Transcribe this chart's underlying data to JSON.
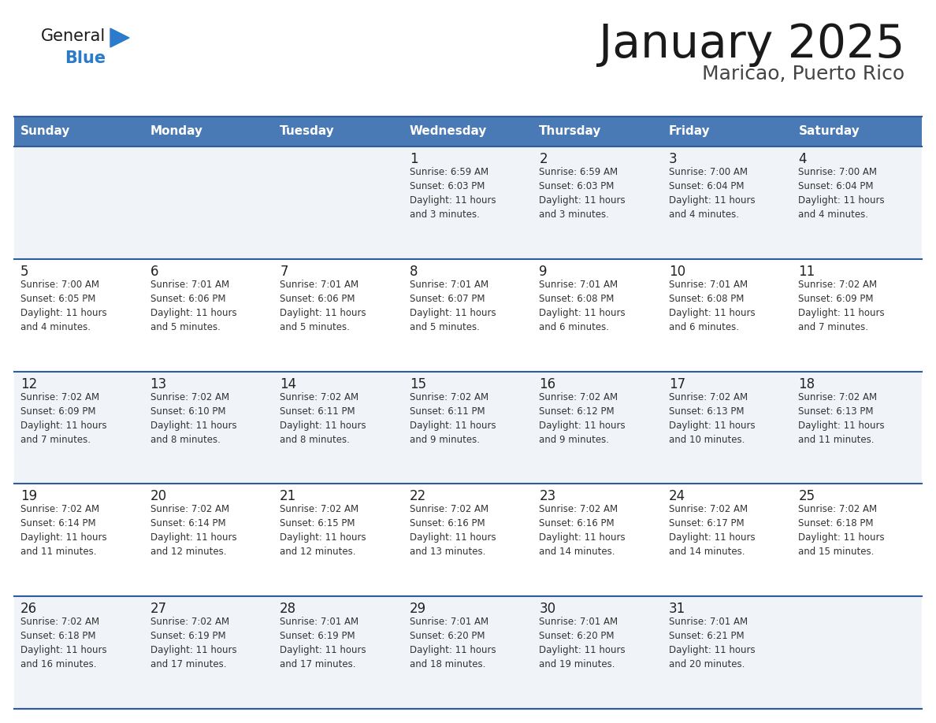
{
  "title": "January 2025",
  "subtitle": "Maricao, Puerto Rico",
  "days_of_week": [
    "Sunday",
    "Monday",
    "Tuesday",
    "Wednesday",
    "Thursday",
    "Friday",
    "Saturday"
  ],
  "header_bg": "#4a7ab5",
  "header_text": "#ffffff",
  "row_bg_light": "#f0f4f8",
  "row_bg_white": "#ffffff",
  "cell_text_color": "#333333",
  "day_number_color": "#222222",
  "border_color": "#2e5c9e",
  "title_color": "#1a1a1a",
  "subtitle_color": "#444444",
  "logo_general_color": "#1a1a1a",
  "logo_blue_color": "#2b7bca",
  "calendar": [
    [
      {
        "day": "",
        "info": ""
      },
      {
        "day": "",
        "info": ""
      },
      {
        "day": "",
        "info": ""
      },
      {
        "day": "1",
        "info": "Sunrise: 6:59 AM\nSunset: 6:03 PM\nDaylight: 11 hours\nand 3 minutes."
      },
      {
        "day": "2",
        "info": "Sunrise: 6:59 AM\nSunset: 6:03 PM\nDaylight: 11 hours\nand 3 minutes."
      },
      {
        "day": "3",
        "info": "Sunrise: 7:00 AM\nSunset: 6:04 PM\nDaylight: 11 hours\nand 4 minutes."
      },
      {
        "day": "4",
        "info": "Sunrise: 7:00 AM\nSunset: 6:04 PM\nDaylight: 11 hours\nand 4 minutes."
      }
    ],
    [
      {
        "day": "5",
        "info": "Sunrise: 7:00 AM\nSunset: 6:05 PM\nDaylight: 11 hours\nand 4 minutes."
      },
      {
        "day": "6",
        "info": "Sunrise: 7:01 AM\nSunset: 6:06 PM\nDaylight: 11 hours\nand 5 minutes."
      },
      {
        "day": "7",
        "info": "Sunrise: 7:01 AM\nSunset: 6:06 PM\nDaylight: 11 hours\nand 5 minutes."
      },
      {
        "day": "8",
        "info": "Sunrise: 7:01 AM\nSunset: 6:07 PM\nDaylight: 11 hours\nand 5 minutes."
      },
      {
        "day": "9",
        "info": "Sunrise: 7:01 AM\nSunset: 6:08 PM\nDaylight: 11 hours\nand 6 minutes."
      },
      {
        "day": "10",
        "info": "Sunrise: 7:01 AM\nSunset: 6:08 PM\nDaylight: 11 hours\nand 6 minutes."
      },
      {
        "day": "11",
        "info": "Sunrise: 7:02 AM\nSunset: 6:09 PM\nDaylight: 11 hours\nand 7 minutes."
      }
    ],
    [
      {
        "day": "12",
        "info": "Sunrise: 7:02 AM\nSunset: 6:09 PM\nDaylight: 11 hours\nand 7 minutes."
      },
      {
        "day": "13",
        "info": "Sunrise: 7:02 AM\nSunset: 6:10 PM\nDaylight: 11 hours\nand 8 minutes."
      },
      {
        "day": "14",
        "info": "Sunrise: 7:02 AM\nSunset: 6:11 PM\nDaylight: 11 hours\nand 8 minutes."
      },
      {
        "day": "15",
        "info": "Sunrise: 7:02 AM\nSunset: 6:11 PM\nDaylight: 11 hours\nand 9 minutes."
      },
      {
        "day": "16",
        "info": "Sunrise: 7:02 AM\nSunset: 6:12 PM\nDaylight: 11 hours\nand 9 minutes."
      },
      {
        "day": "17",
        "info": "Sunrise: 7:02 AM\nSunset: 6:13 PM\nDaylight: 11 hours\nand 10 minutes."
      },
      {
        "day": "18",
        "info": "Sunrise: 7:02 AM\nSunset: 6:13 PM\nDaylight: 11 hours\nand 11 minutes."
      }
    ],
    [
      {
        "day": "19",
        "info": "Sunrise: 7:02 AM\nSunset: 6:14 PM\nDaylight: 11 hours\nand 11 minutes."
      },
      {
        "day": "20",
        "info": "Sunrise: 7:02 AM\nSunset: 6:14 PM\nDaylight: 11 hours\nand 12 minutes."
      },
      {
        "day": "21",
        "info": "Sunrise: 7:02 AM\nSunset: 6:15 PM\nDaylight: 11 hours\nand 12 minutes."
      },
      {
        "day": "22",
        "info": "Sunrise: 7:02 AM\nSunset: 6:16 PM\nDaylight: 11 hours\nand 13 minutes."
      },
      {
        "day": "23",
        "info": "Sunrise: 7:02 AM\nSunset: 6:16 PM\nDaylight: 11 hours\nand 14 minutes."
      },
      {
        "day": "24",
        "info": "Sunrise: 7:02 AM\nSunset: 6:17 PM\nDaylight: 11 hours\nand 14 minutes."
      },
      {
        "day": "25",
        "info": "Sunrise: 7:02 AM\nSunset: 6:18 PM\nDaylight: 11 hours\nand 15 minutes."
      }
    ],
    [
      {
        "day": "26",
        "info": "Sunrise: 7:02 AM\nSunset: 6:18 PM\nDaylight: 11 hours\nand 16 minutes."
      },
      {
        "day": "27",
        "info": "Sunrise: 7:02 AM\nSunset: 6:19 PM\nDaylight: 11 hours\nand 17 minutes."
      },
      {
        "day": "28",
        "info": "Sunrise: 7:01 AM\nSunset: 6:19 PM\nDaylight: 11 hours\nand 17 minutes."
      },
      {
        "day": "29",
        "info": "Sunrise: 7:01 AM\nSunset: 6:20 PM\nDaylight: 11 hours\nand 18 minutes."
      },
      {
        "day": "30",
        "info": "Sunrise: 7:01 AM\nSunset: 6:20 PM\nDaylight: 11 hours\nand 19 minutes."
      },
      {
        "day": "31",
        "info": "Sunrise: 7:01 AM\nSunset: 6:21 PM\nDaylight: 11 hours\nand 20 minutes."
      },
      {
        "day": "",
        "info": ""
      }
    ]
  ]
}
